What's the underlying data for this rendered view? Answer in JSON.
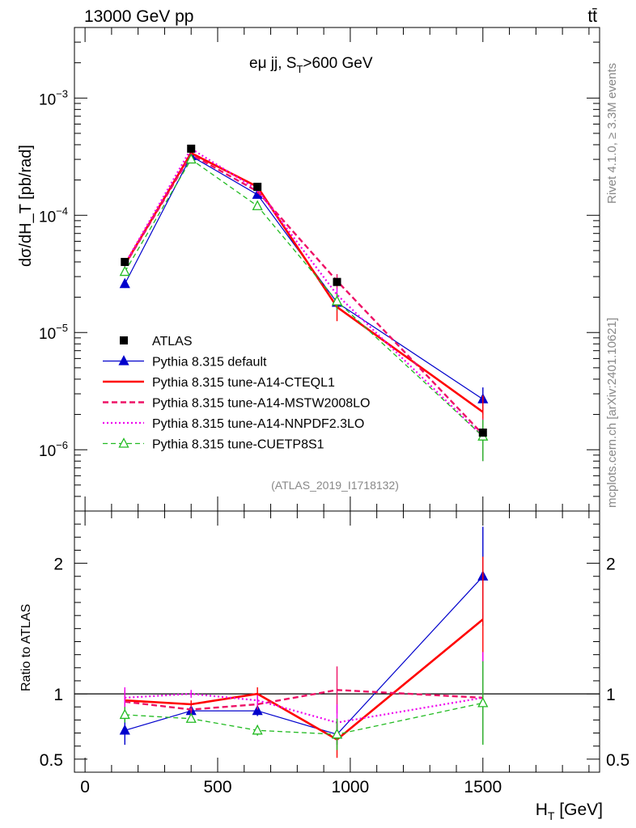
{
  "header": {
    "left": "13000 GeV pp",
    "right": "tt̄"
  },
  "side_labels": {
    "rivet": "Rivet 4.1.0, ≥ 3.3M events",
    "mcplots": "mcplots.cern.ch [arXiv:2401.10621]"
  },
  "chart_data": [
    {
      "type": "line",
      "panel": "main",
      "title_parts": {
        "base": "eμ jj, S",
        "sub": "T",
        "tail": ">600 GeV"
      },
      "ylabel": "dσ/dH_T [pb/rad]",
      "yscale": "log",
      "ylim": [
        3e-07,
        0.004
      ],
      "xlim": [
        -40,
        1940
      ],
      "watermark": "(ATLAS_2019_I1718132)",
      "y_ticks": [
        {
          "value": 1e-06,
          "base": "10",
          "exp": "−6"
        },
        {
          "value": 1e-05,
          "base": "10",
          "exp": "−5"
        },
        {
          "value": 0.0001,
          "base": "10",
          "exp": "−4"
        },
        {
          "value": 0.001,
          "base": "10",
          "exp": "−3"
        }
      ],
      "x": [
        150,
        400,
        650,
        950,
        1500
      ],
      "series": [
        {
          "name": "ATLAS",
          "color": "#000000",
          "style": "data",
          "marker": "square",
          "values": [
            4e-05,
            0.00037,
            0.000175,
            2.7e-05,
            1.4e-06
          ]
        },
        {
          "name": "Pythia 8.315 default",
          "color": "#0000cc",
          "style": "solid-thin",
          "marker": "triangle-filled",
          "values": [
            2.6e-05,
            0.00032,
            0.00015,
            1.8e-05,
            2.7e-06
          ],
          "errors": [
            2e-06,
            1e-05,
            6e-06,
            2e-06,
            7e-07
          ]
        },
        {
          "name": "Pythia 8.315 tune-A14-CTEQL1",
          "color": "#ff0000",
          "style": "solid-thick",
          "marker": "none",
          "values": [
            3.8e-05,
            0.00034,
            0.000175,
            1.65e-05,
            2.1e-06
          ],
          "errors": [
            2e-06,
            1e-05,
            6e-06,
            4e-06,
            8e-07
          ]
        },
        {
          "name": "Pythia 8.315 tune-A14-MSTW2008LO",
          "color": "#ee1166",
          "style": "dashed",
          "marker": "none",
          "values": [
            3.75e-05,
            0.00033,
            0.00016,
            2.75e-05,
            1.35e-06
          ],
          "errors": [
            2e-06,
            1e-05,
            6e-06,
            4e-06,
            5e-07
          ]
        },
        {
          "name": "Pythia 8.315 tune-A14-NNPDF2.3LO",
          "color": "#ee00ee",
          "style": "dotted",
          "marker": "none",
          "values": [
            3.85e-05,
            0.00037,
            0.000165,
            2.1e-05,
            1.3e-06
          ],
          "errors": [
            2e-06,
            1e-05,
            6e-06,
            3e-06,
            5e-07
          ]
        },
        {
          "name": "Pythia 8.315 tune-CUETP8S1",
          "color": "#22bb22",
          "style": "dashed-thin",
          "marker": "triangle-open",
          "values": [
            3.3e-05,
            0.0003,
            0.00012,
            1.85e-05,
            1.3e-06
          ],
          "errors": [
            2e-06,
            1e-05,
            5e-06,
            3e-06,
            5e-07
          ]
        }
      ]
    },
    {
      "type": "line",
      "panel": "ratio",
      "ylabel": "Ratio to ATLAS",
      "xlabel_parts": {
        "base": "H",
        "sub": "T",
        "tail": " [GeV]"
      },
      "ylim": [
        0.4,
        2.4
      ],
      "xlim": [
        -40,
        1940
      ],
      "x_ticks": [
        0,
        500,
        1000,
        1500
      ],
      "y_ticks": [
        0.5,
        1,
        2
      ],
      "reference": 1,
      "x": [
        150,
        400,
        650,
        950,
        1500
      ],
      "series": [
        {
          "name": "Pythia 8.315 default",
          "color": "#0000cc",
          "style": "solid-thin",
          "marker": "triangle-filled",
          "values": [
            0.72,
            0.87,
            0.87,
            0.69,
            1.9
          ],
          "errors": [
            0.11,
            0.03,
            0.04,
            0.08,
            0.38
          ]
        },
        {
          "name": "Pythia 8.315 tune-A14-CTEQL1",
          "color": "#ff0000",
          "style": "solid-thick",
          "marker": "none",
          "values": [
            0.95,
            0.92,
            1.0,
            0.65,
            1.57
          ],
          "errors": [
            0.08,
            0.03,
            0.05,
            0.14,
            0.48
          ]
        },
        {
          "name": "Pythia 8.315 tune-A14-MSTW2008LO",
          "color": "#ee1166",
          "style": "dashed",
          "marker": "none",
          "values": [
            0.94,
            0.88,
            0.92,
            1.03,
            0.97
          ],
          "errors": [
            0.08,
            0.03,
            0.04,
            0.18,
            0.35
          ]
        },
        {
          "name": "Pythia 8.315 tune-A14-NNPDF2.3LO",
          "color": "#ee00ee",
          "style": "dotted",
          "marker": "none",
          "values": [
            0.97,
            1.0,
            0.95,
            0.78,
            0.97
          ],
          "errors": [
            0.08,
            0.03,
            0.04,
            0.14,
            0.35
          ]
        },
        {
          "name": "Pythia 8.315 tune-CUETP8S1",
          "color": "#22bb22",
          "style": "dashed-thin",
          "marker": "triangle-open",
          "values": [
            0.84,
            0.81,
            0.72,
            0.69,
            0.93
          ],
          "errors": [
            0.06,
            0.03,
            0.04,
            0.12,
            0.32
          ]
        }
      ]
    }
  ]
}
